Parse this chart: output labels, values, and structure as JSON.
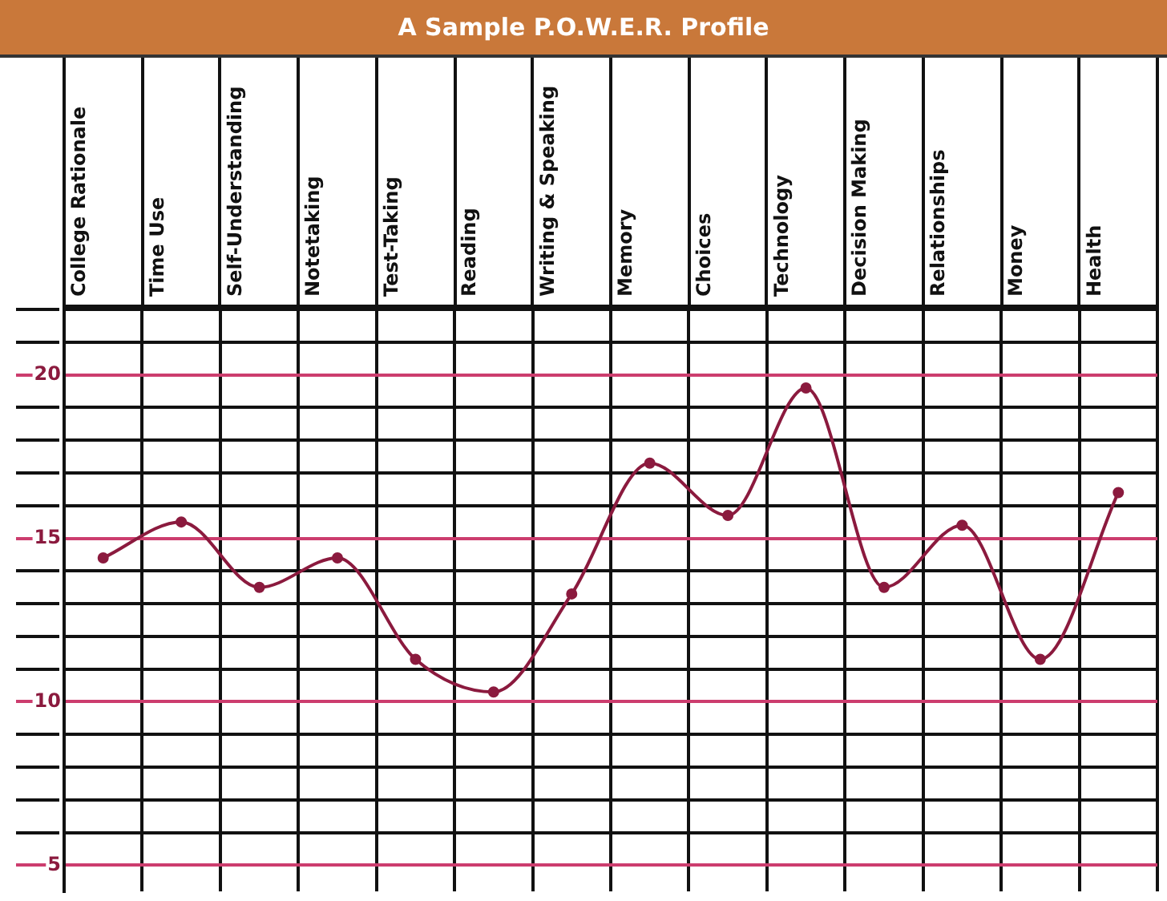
{
  "chart_data": {
    "type": "line",
    "title": "A Sample P.O.W.E.R. Profile",
    "categories": [
      "College Rationale",
      "Time Use",
      "Self-Understanding",
      "Notetaking",
      "Test-Taking",
      "Reading",
      "Writing & Speaking",
      "Memory",
      "Choices",
      "Technology",
      "Decision Making",
      "Relationships",
      "Money",
      "Health"
    ],
    "series": [
      {
        "color": "#8b1a3e",
        "values": [
          14.4,
          15.5,
          13.5,
          14.4,
          11.3,
          10.3,
          13.3,
          17.3,
          15.7,
          19.6,
          13.5,
          15.4,
          11.3,
          16.4
        ]
      }
    ],
    "ylim": [
      4.2,
      22.1
    ],
    "yticks": [
      {
        "value": 5,
        "label": "5"
      },
      {
        "value": 6,
        "label": null
      },
      {
        "value": 7,
        "label": null
      },
      {
        "value": 8,
        "label": null
      },
      {
        "value": 9,
        "label": null
      },
      {
        "value": 10,
        "label": "10"
      },
      {
        "value": 11,
        "label": null
      },
      {
        "value": 12,
        "label": null
      },
      {
        "value": 13,
        "label": null
      },
      {
        "value": 14,
        "label": null
      },
      {
        "value": 15,
        "label": "15"
      },
      {
        "value": 16,
        "label": null
      },
      {
        "value": 17,
        "label": null
      },
      {
        "value": 18,
        "label": null
      },
      {
        "value": 19,
        "label": null
      },
      {
        "value": 20,
        "label": "20"
      },
      {
        "value": 21,
        "label": null
      },
      {
        "value": 22,
        "label": null
      }
    ],
    "grid": true,
    "marker": "circle",
    "line_style": "solid",
    "legend": false
  }
}
